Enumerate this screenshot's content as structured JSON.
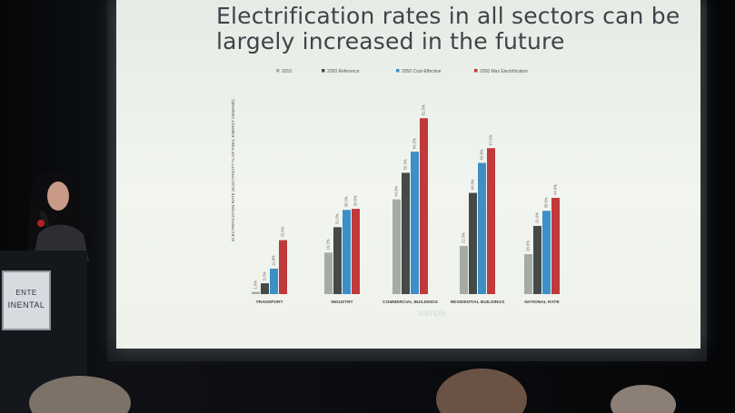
{
  "slide": {
    "title": "Electrification rates in all sectors can be largely increased in the future",
    "watermark": "xample"
  },
  "podium_sign": {
    "lines": [
      "ENTE",
      "INENTAL"
    ]
  },
  "colors": {
    "2010": "#a6aaa7",
    "2050 Reference": "#454a49",
    "2050 Cost-Effective": "#3d8fc7",
    "2050 Max Electrification": "#c0393b"
  },
  "chart_data": {
    "type": "bar",
    "title": "",
    "ylabel": "ELECTRIFICATION RATE (ELECTRICITY % OF FINAL ENERGY DEMAND)",
    "xlabel": "",
    "ylim": [
      0,
      90
    ],
    "grid": false,
    "legend": "top",
    "categories": [
      "TRANSPORT",
      "INDUSTRY",
      "COMMERCIAL BUILDINGS",
      "RESIDENTIAL BUILDINGS",
      "NATIONAL RATE"
    ],
    "series": [
      {
        "name": "2010",
        "values": [
          1.0,
          19.2,
          43.9,
          22.3,
          18.5
        ],
        "labels": [
          "1.0%",
          "19.2%",
          "43.9%",
          "22.3%",
          "18.5%"
        ]
      },
      {
        "name": "2050 Reference",
        "values": [
          5.0,
          31.0,
          56.2,
          46.9,
          31.6
        ],
        "labels": [
          "5.0%",
          "31.0%",
          "56.2%",
          "46.9%",
          "31.6%"
        ]
      },
      {
        "name": "2050 Cost-Effective",
        "values": [
          11.8,
          39.0,
          66.0,
          60.8,
          38.6
        ],
        "labels": [
          "11.8%",
          "39.0%",
          "66.0%",
          "60.8%",
          "38.6%"
        ]
      },
      {
        "name": "2050 Max Electrification",
        "values": [
          25.0,
          39.5,
          81.5,
          67.6,
          44.6
        ],
        "labels": [
          "25.0%",
          "39.5%",
          "81.5%",
          "67.6%",
          "44.6%"
        ]
      }
    ]
  }
}
